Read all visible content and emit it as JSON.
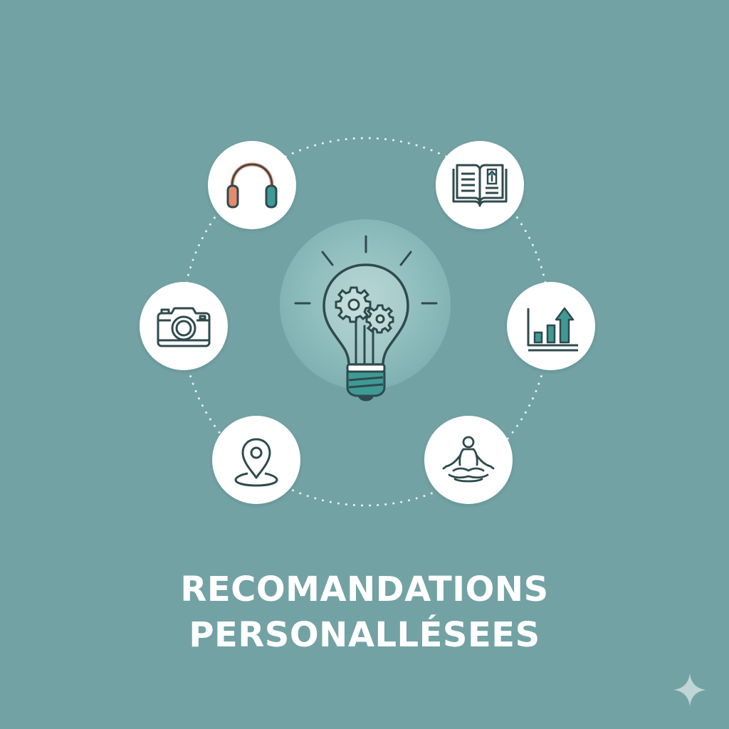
{
  "title": {
    "line1": "RECOMANDATIONS",
    "line2": "PERSONALLÉSEES"
  },
  "colors": {
    "background": "#72a2a4",
    "icon_stroke": "#2f4a4d",
    "teal_accent": "#3f9a96",
    "orange_accent": "#e58a6c",
    "node_fill": "#ffffff"
  },
  "center": {
    "icon": "lightbulb-gears-icon"
  },
  "nodes": [
    {
      "id": "headphones",
      "icon": "headphones-icon"
    },
    {
      "id": "book",
      "icon": "open-book-icon"
    },
    {
      "id": "camera",
      "icon": "camera-icon"
    },
    {
      "id": "chart",
      "icon": "growth-chart-icon"
    },
    {
      "id": "location",
      "icon": "location-pin-icon"
    },
    {
      "id": "meditation",
      "icon": "meditation-icon"
    }
  ],
  "corner_mark": {
    "icon": "sparkle-icon"
  }
}
